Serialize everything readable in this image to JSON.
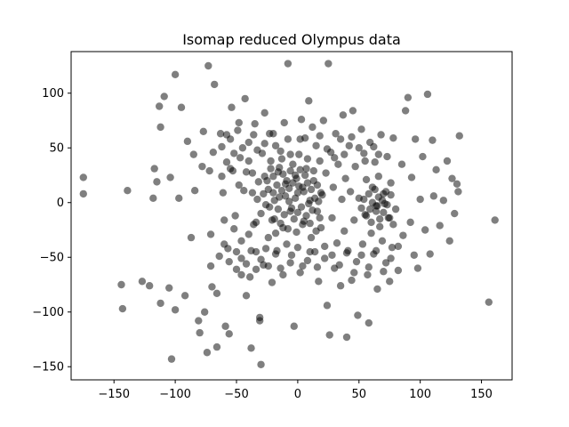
{
  "chart_data": {
    "type": "scatter",
    "title": "Isomap reduced Olympus data",
    "xlabel": "",
    "ylabel": "",
    "xlim": [
      -185,
      175
    ],
    "ylim": [
      -162,
      138
    ],
    "xticks": [
      -150,
      -100,
      -50,
      0,
      50,
      100,
      150
    ],
    "yticks": [
      -150,
      -100,
      -50,
      0,
      50,
      100
    ],
    "grid": false,
    "legend": "none",
    "marker_color": "#000000",
    "marker_alpha": 0.5,
    "series": [
      {
        "points": [
          [
            -175,
            8
          ],
          [
            -175,
            23
          ],
          [
            -139,
            11
          ],
          [
            -144,
            -75
          ],
          [
            -143,
            -97
          ],
          [
            -127,
            -72
          ],
          [
            -121,
            -76
          ],
          [
            -117,
            31
          ],
          [
            -118,
            4
          ],
          [
            -115,
            19
          ],
          [
            -113,
            88
          ],
          [
            -112,
            69
          ],
          [
            -109,
            97
          ],
          [
            -112,
            -92
          ],
          [
            -105,
            -78
          ],
          [
            -104,
            23
          ],
          [
            -100,
            117
          ],
          [
            -100,
            -98
          ],
          [
            -103,
            -143
          ],
          [
            -97,
            4
          ],
          [
            -95,
            87
          ],
          [
            -92,
            -85
          ],
          [
            -87,
            -32
          ],
          [
            -90,
            56
          ],
          [
            -85,
            44
          ],
          [
            -84,
            11
          ],
          [
            -80,
            -119
          ],
          [
            -81,
            -108
          ],
          [
            -78,
            33
          ],
          [
            -77,
            65
          ],
          [
            -76,
            -100
          ],
          [
            -74,
            -137
          ],
          [
            -73,
            125
          ],
          [
            -72,
            29
          ],
          [
            -71,
            -29
          ],
          [
            -71,
            -58
          ],
          [
            -70,
            -77
          ],
          [
            -69,
            46
          ],
          [
            -68,
            108
          ],
          [
            -66,
            -83
          ],
          [
            -66,
            -132
          ],
          [
            -64,
            -49
          ],
          [
            -63,
            63
          ],
          [
            -62,
            24
          ],
          [
            -61,
            9
          ],
          [
            -60,
            -16
          ],
          [
            -59,
            -113
          ],
          [
            -58,
            37
          ],
          [
            -57,
            -42
          ],
          [
            -56,
            -120
          ],
          [
            -55,
            58
          ],
          [
            -54,
            87
          ],
          [
            -53,
            29
          ],
          [
            -51,
            -12
          ],
          [
            -50,
            -61
          ],
          [
            -48,
            73
          ],
          [
            -47,
            41
          ],
          [
            -46,
            -35
          ],
          [
            -44,
            11
          ],
          [
            -43,
            95
          ],
          [
            -42,
            -85
          ],
          [
            -40,
            55
          ],
          [
            -39,
            -68
          ],
          [
            -38,
            -133
          ],
          [
            -37,
            27
          ],
          [
            -36,
            -20
          ],
          [
            -35,
            72
          ],
          [
            -34,
            -45
          ],
          [
            -33,
            3
          ],
          [
            -31,
            -108
          ],
          [
            -31,
            -105
          ],
          [
            -30,
            -148
          ],
          [
            -29,
            45
          ],
          [
            -28,
            -57
          ],
          [
            -27,
            82
          ],
          [
            -26,
            -2
          ],
          [
            -25,
            20
          ],
          [
            -24,
            -32
          ],
          [
            -23,
            63
          ],
          [
            -22,
            31
          ],
          [
            -21,
            -73
          ],
          [
            -20,
            9
          ],
          [
            -19,
            -15
          ],
          [
            -18,
            52
          ],
          [
            -17,
            -44
          ],
          [
            -16,
            28
          ],
          [
            -15,
            5
          ],
          [
            -14,
            -60
          ],
          [
            -13,
            40
          ],
          [
            -12,
            -23
          ],
          [
            -11,
            73
          ],
          [
            -10,
            17
          ],
          [
            -9,
            -38
          ],
          [
            -8,
            127
          ],
          [
            -8,
            58
          ],
          [
            -7,
            1
          ],
          [
            -6,
            -8
          ],
          [
            -5,
            -48
          ],
          [
            -4,
            35
          ],
          [
            -3,
            -113
          ],
          [
            -2,
            25
          ],
          [
            -1,
            -27
          ],
          [
            0,
            9
          ],
          [
            1,
            44
          ],
          [
            2,
            -64
          ],
          [
            3,
            76
          ],
          [
            4,
            14
          ],
          [
            5,
            -17
          ],
          [
            6,
            59
          ],
          [
            7,
            31
          ],
          [
            8,
            -53
          ],
          [
            9,
            93
          ],
          [
            10,
            2
          ],
          [
            11,
            -32
          ],
          [
            12,
            69
          ],
          [
            13,
            20
          ],
          [
            14,
            -45
          ],
          [
            15,
            52
          ],
          [
            16,
            -8
          ],
          [
            17,
            -72
          ],
          [
            18,
            38
          ],
          [
            19,
            -23
          ],
          [
            20,
            7
          ],
          [
            21,
            75
          ],
          [
            22,
            -51
          ],
          [
            23,
            27
          ],
          [
            24,
            -94
          ],
          [
            25,
            127
          ],
          [
            26,
            -121
          ],
          [
            27,
            46
          ],
          [
            28,
            -14
          ],
          [
            29,
            14
          ],
          [
            30,
            -60
          ],
          [
            31,
            63
          ],
          [
            32,
            -37
          ],
          [
            33,
            35
          ],
          [
            35,
            -76
          ],
          [
            36,
            3
          ],
          [
            37,
            80
          ],
          [
            38,
            -26
          ],
          [
            39,
            22
          ],
          [
            40,
            -123
          ],
          [
            41,
            -44
          ],
          [
            42,
            52
          ],
          [
            43,
            10
          ],
          [
            44,
            -71
          ],
          [
            45,
            84
          ],
          [
            46,
            -16
          ],
          [
            47,
            33
          ],
          [
            48,
            -54
          ],
          [
            49,
            -103
          ],
          [
            50,
            4
          ],
          [
            52,
            67
          ],
          [
            53,
            -38
          ],
          [
            54,
            45
          ],
          [
            55,
            -11
          ],
          [
            56,
            21
          ],
          [
            57,
            -66
          ],
          [
            58,
            -110
          ],
          [
            59,
            55
          ],
          [
            60,
            -28
          ],
          [
            61,
            14
          ],
          [
            62,
            -47
          ],
          [
            63,
            37
          ],
          [
            64,
            -3
          ],
          [
            65,
            -79
          ],
          [
            66,
            24
          ],
          [
            67,
            -22
          ],
          [
            68,
            62
          ],
          [
            69,
            -35
          ],
          [
            70,
            8
          ],
          [
            72,
            -55
          ],
          [
            73,
            42
          ],
          [
            74,
            -14
          ],
          [
            75,
            -72
          ],
          [
            76,
            18
          ],
          [
            77,
            -41
          ],
          [
            78,
            59
          ],
          [
            80,
            -6
          ],
          [
            82,
            -62
          ],
          [
            85,
            35
          ],
          [
            86,
            -30
          ],
          [
            88,
            84
          ],
          [
            90,
            96
          ],
          [
            92,
            -18
          ],
          [
            93,
            23
          ],
          [
            95,
            -48
          ],
          [
            96,
            58
          ],
          [
            98,
            -60
          ],
          [
            100,
            3
          ],
          [
            102,
            42
          ],
          [
            104,
            -25
          ],
          [
            106,
            99
          ],
          [
            108,
            -47
          ],
          [
            110,
            57
          ],
          [
            111,
            6
          ],
          [
            113,
            30
          ],
          [
            116,
            -21
          ],
          [
            119,
            2
          ],
          [
            122,
            38
          ],
          [
            124,
            -35
          ],
          [
            126,
            22
          ],
          [
            128,
            -10
          ],
          [
            130,
            17
          ],
          [
            131,
            10
          ],
          [
            132,
            61
          ],
          [
            156,
            -91
          ],
          [
            161,
            -16
          ],
          [
            -55,
            31
          ],
          [
            -52,
            -24
          ],
          [
            -48,
            16
          ],
          [
            -46,
            -51
          ],
          [
            -42,
            28
          ],
          [
            -40,
            -29
          ],
          [
            -37,
            9
          ],
          [
            -34,
            -18
          ],
          [
            -32,
            19
          ],
          [
            -30,
            -10
          ],
          [
            -28,
            8
          ],
          [
            -27,
            24
          ],
          [
            -26,
            -42
          ],
          [
            -24,
            12
          ],
          [
            -23,
            -4
          ],
          [
            -22,
            38
          ],
          [
            -21,
            -16
          ],
          [
            -20,
            24
          ],
          [
            -19,
            2
          ],
          [
            -18,
            -28
          ],
          [
            -17,
            16
          ],
          [
            -16,
            -6
          ],
          [
            -15,
            32
          ],
          [
            -14,
            -19
          ],
          [
            -13,
            11
          ],
          [
            -12,
            26
          ],
          [
            -11,
            -11
          ],
          [
            -10,
            6
          ],
          [
            -9,
            20
          ],
          [
            -8,
            -24
          ],
          [
            -7,
            13
          ],
          [
            -6,
            29
          ],
          [
            -5,
            -5
          ],
          [
            -4,
            18
          ],
          [
            -3,
            -15
          ],
          [
            -2,
            4
          ],
          [
            -1,
            22
          ],
          [
            0,
            -9
          ],
          [
            1,
            15
          ],
          [
            2,
            30
          ],
          [
            3,
            -4
          ],
          [
            4,
            -20
          ],
          [
            5,
            10
          ],
          [
            6,
            25
          ],
          [
            7,
            -12
          ],
          [
            8,
            18
          ],
          [
            9,
            -1
          ],
          [
            10,
            -19
          ],
          [
            11,
            12
          ],
          [
            12,
            -7
          ],
          [
            13,
            29
          ],
          [
            14,
            4
          ],
          [
            15,
            -26
          ],
          [
            16,
            16
          ],
          [
            17,
            1
          ],
          [
            18,
            -14
          ],
          [
            19,
            9
          ],
          [
            52,
            -5
          ],
          [
            54,
            3
          ],
          [
            56,
            -12
          ],
          [
            58,
            8
          ],
          [
            60,
            -18
          ],
          [
            61,
            0
          ],
          [
            63,
            12
          ],
          [
            64,
            -8
          ],
          [
            66,
            5
          ],
          [
            67,
            -15
          ],
          [
            69,
            2
          ],
          [
            70,
            -9
          ],
          [
            72,
            10
          ],
          [
            73,
            -2
          ],
          [
            75,
            -14
          ],
          [
            76,
            7
          ],
          [
            78,
            -20
          ],
          [
            65,
            -3
          ],
          [
            59,
            -6
          ],
          [
            71,
            -1
          ],
          [
            -62,
            51
          ],
          [
            -58,
            62
          ],
          [
            -52,
            45
          ],
          [
            -49,
            66
          ],
          [
            -45,
            50
          ],
          [
            -40,
            38
          ],
          [
            -36,
            62
          ],
          [
            -33,
            48
          ],
          [
            -27,
            54
          ],
          [
            -20,
            63
          ],
          [
            -14,
            47
          ],
          [
            -6,
            44
          ],
          [
            2,
            58
          ],
          [
            8,
            40
          ],
          [
            18,
            61
          ],
          [
            24,
            49
          ],
          [
            30,
            41
          ],
          [
            35,
            58
          ],
          [
            38,
            44
          ],
          [
            44,
            60
          ],
          [
            50,
            50
          ],
          [
            55,
            38
          ],
          [
            62,
            51
          ],
          [
            66,
            44
          ],
          [
            -60,
            -38
          ],
          [
            -56,
            -54
          ],
          [
            -50,
            -45
          ],
          [
            -46,
            -66
          ],
          [
            -42,
            -56
          ],
          [
            -38,
            -44
          ],
          [
            -34,
            -61
          ],
          [
            -30,
            -52
          ],
          [
            -24,
            -58
          ],
          [
            -18,
            -47
          ],
          [
            -12,
            -66
          ],
          [
            -6,
            -55
          ],
          [
            0,
            -41
          ],
          [
            4,
            -58
          ],
          [
            10,
            -45
          ],
          [
            16,
            -59
          ],
          [
            22,
            -40
          ],
          [
            28,
            -48
          ],
          [
            34,
            -57
          ],
          [
            40,
            -46
          ],
          [
            46,
            -64
          ],
          [
            52,
            -48
          ],
          [
            58,
            -59
          ],
          [
            64,
            -44
          ],
          [
            70,
            -63
          ],
          [
            76,
            -51
          ],
          [
            82,
            -40
          ]
        ]
      }
    ]
  }
}
